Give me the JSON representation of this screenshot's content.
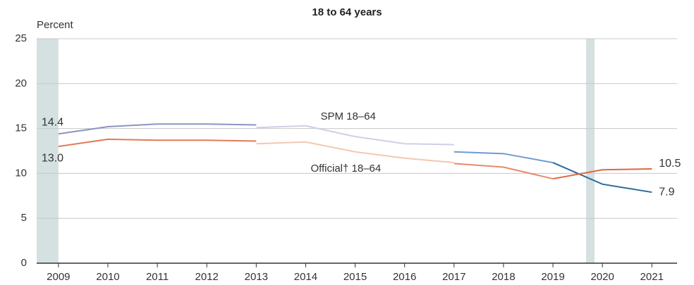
{
  "chart_data": {
    "type": "line",
    "title": "18 to 64 years",
    "y_label": "Percent",
    "xlim": [
      2008.56,
      2021.51
    ],
    "xticks": [
      2009,
      2010,
      2011,
      2012,
      2013,
      2014,
      2015,
      2016,
      2017,
      2018,
      2019,
      2020,
      2021
    ],
    "ylim": [
      0,
      25
    ],
    "yticks": [
      0,
      5,
      10,
      15,
      20,
      25
    ],
    "grid": true,
    "shaded_periods": [
      {
        "start": 2008.56,
        "end": 2009.0,
        "color": "#d5e0e0"
      },
      {
        "start": 2019.67,
        "end": 2019.84,
        "color": "#d5e0e0"
      }
    ],
    "annotations": [
      {
        "text": "SPM 18–64",
        "x": 2014.3,
        "y": 16.3
      },
      {
        "text": "Official† 18–64",
        "x": 2014.1,
        "y": 10.5
      }
    ],
    "series": [
      {
        "color": "#8e93c3",
        "x": [
          2009,
          2010,
          2011,
          2012,
          2013
        ],
        "values": [
          14.4,
          15.2,
          15.5,
          15.5,
          15.4
        ],
        "value_labels": [
          "14.4",
          null,
          null,
          null,
          null
        ]
      },
      {
        "color": "#cfcfe6",
        "x": [
          2013,
          2014,
          2015,
          2016,
          2017
        ],
        "values": [
          15.1,
          15.3,
          14.1,
          13.3,
          13.2
        ]
      },
      {
        "color": "#6d9bd3",
        "x": [
          2017,
          2018,
          2019
        ],
        "values": [
          12.4,
          12.2,
          11.2
        ]
      },
      {
        "color": "#2a6b9c",
        "x": [
          2019,
          2020,
          2021
        ],
        "values": [
          11.2,
          8.8,
          7.9
        ],
        "value_labels": [
          null,
          null,
          "7.9"
        ]
      },
      {
        "color": "#e07a57",
        "x": [
          2009,
          2010,
          2011,
          2012,
          2013
        ],
        "values": [
          13.0,
          13.8,
          13.7,
          13.7,
          13.6
        ],
        "value_labels": [
          "13.0",
          null,
          null,
          null,
          null
        ]
      },
      {
        "color": "#f5c6b3",
        "x": [
          2013,
          2014,
          2015,
          2016,
          2017
        ],
        "values": [
          13.3,
          13.5,
          12.4,
          11.7,
          11.2
        ]
      },
      {
        "color": "#e8896d",
        "x": [
          2017,
          2018,
          2019
        ],
        "values": [
          11.1,
          10.7,
          9.4
        ]
      },
      {
        "color": "#e0693d",
        "x": [
          2019,
          2020,
          2021
        ],
        "values": [
          9.4,
          10.4,
          10.5
        ],
        "value_labels": [
          null,
          null,
          "10.5"
        ]
      }
    ]
  }
}
